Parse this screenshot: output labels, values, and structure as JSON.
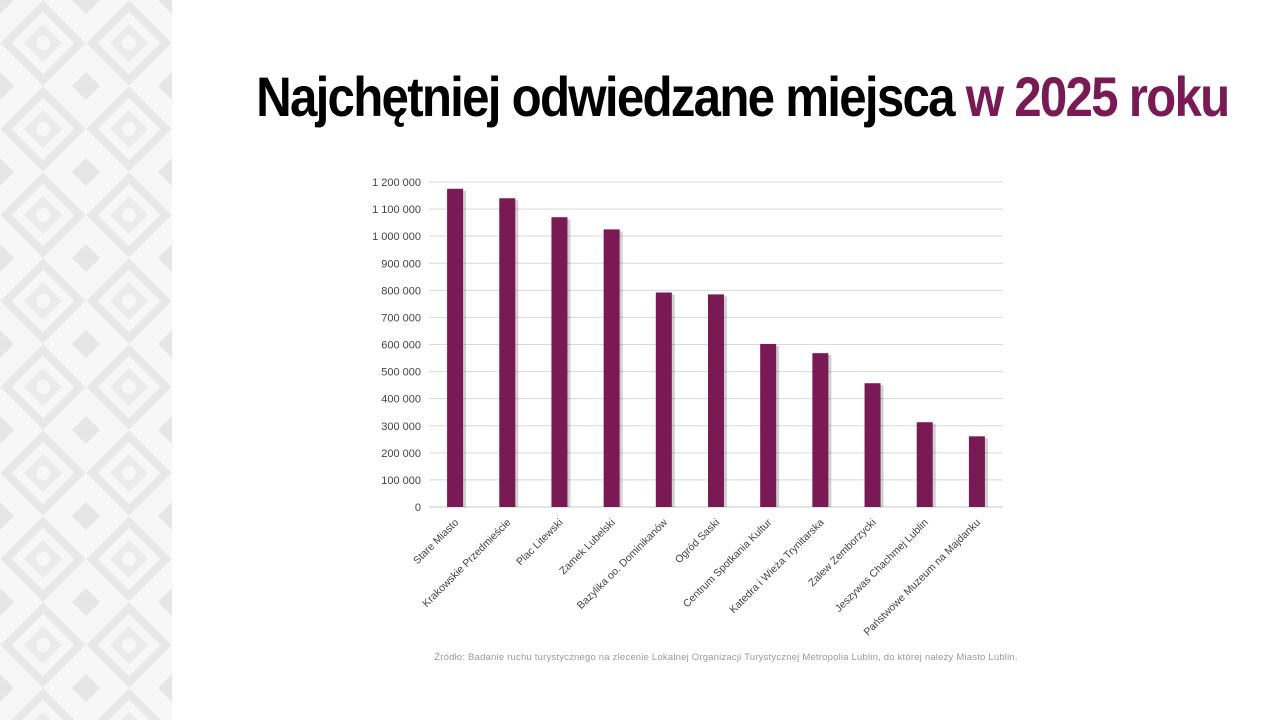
{
  "title": {
    "main": "Najchętniej odwiedzane miejsca",
    "accent": "w 2025 roku"
  },
  "colors": {
    "accent": "#7a1a55",
    "bar": "#7a1a55",
    "grid": "#d9d9d9",
    "pattern": "#efefef"
  },
  "chart_data": {
    "type": "bar",
    "title": "",
    "xlabel": "",
    "ylabel": "",
    "ylim": [
      0,
      1200000
    ],
    "yticks": [
      0,
      100000,
      200000,
      300000,
      400000,
      500000,
      600000,
      700000,
      800000,
      900000,
      1000000,
      1100000,
      1200000
    ],
    "ytick_labels": [
      "0",
      "100 000",
      "200 000",
      "300 000",
      "400 000",
      "500 000",
      "600 000",
      "700 000",
      "800 000",
      "900 000",
      "1 000 000",
      "1 100 000",
      "1 200 000"
    ],
    "grid": true,
    "categories": [
      "Stare Miasto",
      "Krakowskie Przedmieście",
      "Plac Litewski",
      "Zamek Lubelski",
      "Bazylika oo. Dominikanów",
      "Ogród Saski",
      "Centrum Spotkania Kultur",
      "Katedra i Wieża Trynitarska",
      "Zalew Zemborzycki",
      "Jeszywas Chachmej Lublin",
      "Państwowe Muzeum na Majdanku"
    ],
    "values": [
      1175000,
      1140000,
      1070000,
      1025000,
      792000,
      785000,
      602000,
      568000,
      457000,
      313000,
      261000
    ]
  },
  "source": "Źródło: Badanie ruchu turystycznego na zlecenie Lokalnej Organizacji Turystycznej Metropolia Lublin, do której należy Miasto Lublin."
}
